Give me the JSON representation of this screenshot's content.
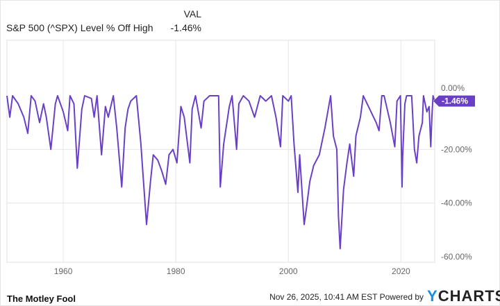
{
  "legend": {
    "header": "VAL",
    "series_name": "S&P 500 (^SPX) Level % Off High",
    "value": "-1.46%"
  },
  "footer": {
    "timestamp": "Nov 26, 2025, 10:41 AM EST",
    "powered_by": "Powered by",
    "brand": "YCHARTS",
    "logo_text": "The Motley Fool"
  },
  "chart_data": {
    "type": "line",
    "title": "",
    "xlabel": "",
    "ylabel": "",
    "xlim": [
      1950,
      2026
    ],
    "ylim": [
      -60,
      5
    ],
    "x_ticks": [
      "1960",
      "1980",
      "2000",
      "2020"
    ],
    "y_ticks": [
      "0.00%",
      "-20.00%",
      "-40.00%",
      "-60.00%"
    ],
    "grid": true,
    "color": "#6a3fc8",
    "last_value_label": "-1.46%",
    "series": [
      {
        "name": "S&P 500 (^SPX) Level % Off High",
        "points": [
          [
            1950,
            0
          ],
          [
            1950.5,
            -8
          ],
          [
            1951,
            0
          ],
          [
            1952,
            -3
          ],
          [
            1953,
            -8
          ],
          [
            1953.7,
            -14
          ],
          [
            1954.3,
            0
          ],
          [
            1955,
            -2
          ],
          [
            1955.8,
            -10
          ],
          [
            1956.5,
            -3
          ],
          [
            1957,
            -8
          ],
          [
            1957.8,
            -20
          ],
          [
            1958.6,
            -3
          ],
          [
            1959,
            0
          ],
          [
            1960,
            -6
          ],
          [
            1960.8,
            -13
          ],
          [
            1961.2,
            0
          ],
          [
            1961.9,
            -3
          ],
          [
            1962.5,
            -27
          ],
          [
            1963.3,
            -5
          ],
          [
            1963.8,
            0
          ],
          [
            1965,
            -1
          ],
          [
            1965.5,
            -8
          ],
          [
            1966,
            0
          ],
          [
            1966.8,
            -22
          ],
          [
            1967.5,
            -4
          ],
          [
            1968,
            -8
          ],
          [
            1968.9,
            0
          ],
          [
            1969.5,
            -12
          ],
          [
            1970.4,
            -34
          ],
          [
            1971,
            -12
          ],
          [
            1971.5,
            -5
          ],
          [
            1972,
            -2
          ],
          [
            1973,
            0
          ],
          [
            1973.8,
            -18
          ],
          [
            1974.2,
            -30
          ],
          [
            1974.8,
            -48
          ],
          [
            1975.5,
            -32
          ],
          [
            1976,
            -22
          ],
          [
            1976.8,
            -24
          ],
          [
            1977.5,
            -28
          ],
          [
            1978.2,
            -33
          ],
          [
            1978.8,
            -22
          ],
          [
            1979.5,
            -20
          ],
          [
            1980.2,
            -25
          ],
          [
            1980.9,
            -4
          ],
          [
            1981.5,
            -8
          ],
          [
            1982.5,
            -25
          ],
          [
            1982.9,
            -5
          ],
          [
            1983.5,
            0
          ],
          [
            1984.5,
            -12
          ],
          [
            1985,
            -2
          ],
          [
            1986,
            0
          ],
          [
            1987.6,
            0
          ],
          [
            1987.9,
            -34
          ],
          [
            1988.5,
            -18
          ],
          [
            1989.5,
            -4
          ],
          [
            1990,
            0
          ],
          [
            1990.8,
            -20
          ],
          [
            1991.2,
            -3
          ],
          [
            1992,
            0
          ],
          [
            1993,
            -2
          ],
          [
            1994,
            -8
          ],
          [
            1995,
            0
          ],
          [
            1996,
            -2
          ],
          [
            1997,
            0
          ],
          [
            1997.8,
            -8
          ],
          [
            1998.6,
            -19
          ],
          [
            1999,
            0
          ],
          [
            2000,
            -2
          ],
          [
            2000.5,
            0
          ],
          [
            2001,
            -18
          ],
          [
            2001.7,
            -36
          ],
          [
            2002,
            -22
          ],
          [
            2002.8,
            -48
          ],
          [
            2003.2,
            -42
          ],
          [
            2003.8,
            -32
          ],
          [
            2004.5,
            -26
          ],
          [
            2005.5,
            -22
          ],
          [
            2006.5,
            -12
          ],
          [
            2007.5,
            0
          ],
          [
            2008,
            -15
          ],
          [
            2008.6,
            -20
          ],
          [
            2008.9,
            -45
          ],
          [
            2009.2,
            -57
          ],
          [
            2009.8,
            -35
          ],
          [
            2010.4,
            -25
          ],
          [
            2010.9,
            -18
          ],
          [
            2011.6,
            -30
          ],
          [
            2012,
            -15
          ],
          [
            2012.8,
            -8
          ],
          [
            2013.3,
            0
          ],
          [
            2014,
            -3
          ],
          [
            2015.6,
            -10
          ],
          [
            2016.1,
            -13
          ],
          [
            2016.6,
            0
          ],
          [
            2017,
            0
          ],
          [
            2018.1,
            -10
          ],
          [
            2018.9,
            -19
          ],
          [
            2019.3,
            -2
          ],
          [
            2019.9,
            0
          ],
          [
            2020.2,
            -34
          ],
          [
            2020.3,
            -23
          ],
          [
            2020.7,
            -3
          ],
          [
            2021,
            0
          ],
          [
            2021.9,
            0
          ],
          [
            2022.4,
            -20
          ],
          [
            2022.8,
            -25
          ],
          [
            2023.2,
            -15
          ],
          [
            2023.8,
            -10
          ],
          [
            2024,
            0
          ],
          [
            2024.6,
            -6
          ],
          [
            2025,
            -4
          ],
          [
            2025.3,
            -19
          ],
          [
            2025.5,
            -8
          ],
          [
            2025.7,
            0
          ],
          [
            2025.9,
            -1.46
          ]
        ]
      }
    ]
  }
}
